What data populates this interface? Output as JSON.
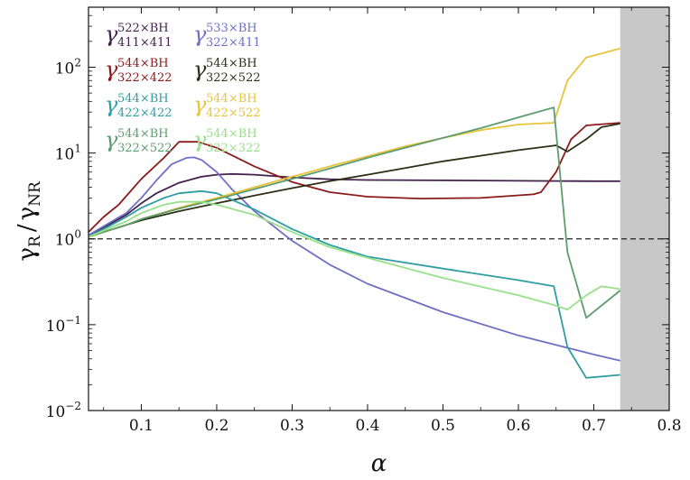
{
  "chart_data": {
    "type": "line",
    "xlabel": "α",
    "ylabel": "γR / γNR",
    "ylabel_parts": {
      "g1": "γ",
      "s1": "R",
      "slash": "/",
      "g2": "γ",
      "s2": "NR"
    },
    "xlim": [
      0.03,
      0.8
    ],
    "ylim": [
      0.01,
      500
    ],
    "yscale": "log",
    "x_ticks": [
      0.1,
      0.2,
      0.3,
      0.4,
      0.5,
      0.6,
      0.7,
      0.8
    ],
    "x_tick_labels": [
      "0.1",
      "0.2",
      "0.3",
      "0.4",
      "0.5",
      "0.6",
      "0.7",
      "0.8"
    ],
    "y_ticks": [
      0.01,
      0.1,
      1,
      10,
      100
    ],
    "y_tick_labels": [
      {
        "base": "10",
        "exp": "−2"
      },
      {
        "base": "10",
        "exp": "−1"
      },
      {
        "base": "10",
        "exp": "0"
      },
      {
        "base": "10",
        "exp": "1"
      },
      {
        "base": "10",
        "exp": "2"
      }
    ],
    "reference_line": {
      "y": 1,
      "style": "dashed",
      "color": "#222222"
    },
    "shaded_region": {
      "x": [
        0.735,
        0.8
      ],
      "color": "#c8c8c8"
    },
    "legend_placement": "top-left",
    "series": [
      {
        "name": "522×BH / 411×411",
        "label": {
          "sup": "522×BH",
          "sub": "411×411"
        },
        "color": "#45214e",
        "x": [
          0.03,
          0.05,
          0.08,
          0.1,
          0.12,
          0.15,
          0.18,
          0.2,
          0.22,
          0.25,
          0.3,
          0.35,
          0.4,
          0.5,
          0.6,
          0.65,
          0.7,
          0.735
        ],
        "y": [
          1.1,
          1.35,
          1.9,
          2.6,
          3.4,
          4.5,
          5.3,
          5.6,
          5.7,
          5.6,
          5.2,
          4.95,
          4.85,
          4.8,
          4.75,
          4.72,
          4.7,
          4.7
        ]
      },
      {
        "name": "533×BH / 322×411",
        "label": {
          "sup": "533×BH",
          "sub": "322×411"
        },
        "color": "#6e6fc4",
        "x": [
          0.03,
          0.05,
          0.08,
          0.1,
          0.12,
          0.14,
          0.16,
          0.17,
          0.18,
          0.2,
          0.22,
          0.25,
          0.3,
          0.35,
          0.4,
          0.5,
          0.6,
          0.7,
          0.735
        ],
        "y": [
          1.1,
          1.4,
          2.0,
          3.0,
          4.8,
          7.4,
          8.8,
          8.9,
          8.3,
          6.0,
          3.8,
          2.1,
          0.95,
          0.5,
          0.3,
          0.14,
          0.075,
          0.045,
          0.038
        ]
      },
      {
        "name": "544×BH / 322×422",
        "label": {
          "sup": "544×BH",
          "sub": "322×422"
        },
        "color": "#8b1a1a",
        "x": [
          0.03,
          0.05,
          0.07,
          0.1,
          0.13,
          0.15,
          0.175,
          0.2,
          0.25,
          0.3,
          0.35,
          0.4,
          0.47,
          0.55,
          0.62,
          0.63,
          0.65,
          0.67,
          0.69,
          0.735
        ],
        "y": [
          1.2,
          1.8,
          2.5,
          5.0,
          8.8,
          13.5,
          13.5,
          11.5,
          7.0,
          4.6,
          3.5,
          3.1,
          2.95,
          3.0,
          3.3,
          3.5,
          6.0,
          14.5,
          21.0,
          22.5
        ]
      },
      {
        "name": "544×BH / 322×522",
        "label": {
          "sup": "544×BH",
          "sub": "322×522"
        },
        "color": "#2e3016",
        "x": [
          0.03,
          0.05,
          0.08,
          0.1,
          0.15,
          0.2,
          0.25,
          0.3,
          0.35,
          0.4,
          0.45,
          0.5,
          0.55,
          0.6,
          0.65,
          0.665,
          0.69,
          0.71,
          0.735
        ],
        "y": [
          1.05,
          1.2,
          1.45,
          1.65,
          2.1,
          2.6,
          3.2,
          3.9,
          4.7,
          5.6,
          6.7,
          8.0,
          9.3,
          10.8,
          12.3,
          10.4,
          14.5,
          20.0,
          22.0
        ]
      },
      {
        "name": "544×BH / 422×422",
        "label": {
          "sup": "544×BH",
          "sub": "422×422"
        },
        "color": "#2e9ea3",
        "x": [
          0.03,
          0.05,
          0.08,
          0.1,
          0.13,
          0.15,
          0.18,
          0.2,
          0.25,
          0.3,
          0.35,
          0.4,
          0.5,
          0.6,
          0.647,
          0.665,
          0.69,
          0.735
        ],
        "y": [
          1.05,
          1.3,
          1.8,
          2.3,
          3.0,
          3.4,
          3.6,
          3.4,
          2.2,
          1.3,
          0.85,
          0.62,
          0.45,
          0.33,
          0.28,
          0.055,
          0.024,
          0.026
        ]
      },
      {
        "name": "544×BH / 422×522",
        "label": {
          "sup": "544×BH",
          "sub": "422×522"
        },
        "color": "#e8c43a",
        "x": [
          0.03,
          0.05,
          0.08,
          0.1,
          0.15,
          0.2,
          0.25,
          0.3,
          0.35,
          0.4,
          0.45,
          0.5,
          0.55,
          0.6,
          0.647,
          0.665,
          0.69,
          0.735
        ],
        "y": [
          1.05,
          1.2,
          1.45,
          1.7,
          2.3,
          3.0,
          4.0,
          5.3,
          7.0,
          9.2,
          12.0,
          15.0,
          18.5,
          21.5,
          22.5,
          70.0,
          130.0,
          165.0
        ]
      },
      {
        "name": "544×BH / 322×522",
        "label": {
          "sup": "544×BH",
          "sub": "322×522"
        },
        "color": "#5e9c6f",
        "x": [
          0.03,
          0.05,
          0.08,
          0.1,
          0.15,
          0.2,
          0.25,
          0.3,
          0.35,
          0.4,
          0.45,
          0.5,
          0.55,
          0.6,
          0.647,
          0.665,
          0.69,
          0.735
        ],
        "y": [
          1.05,
          1.2,
          1.45,
          1.7,
          2.25,
          2.9,
          3.8,
          5.0,
          6.6,
          8.8,
          11.5,
          15.0,
          19.5,
          26.0,
          34.0,
          0.7,
          0.12,
          0.25
        ]
      },
      {
        "name": "544×BH / 322×322",
        "label": {
          "sup": "544×BH",
          "sub": "322×322"
        },
        "color": "#98e089",
        "x": [
          0.03,
          0.05,
          0.08,
          0.1,
          0.13,
          0.15,
          0.18,
          0.2,
          0.25,
          0.3,
          0.35,
          0.4,
          0.5,
          0.6,
          0.647,
          0.665,
          0.69,
          0.71,
          0.735
        ],
        "y": [
          1.05,
          1.25,
          1.6,
          2.0,
          2.5,
          2.7,
          2.7,
          2.5,
          1.9,
          1.2,
          0.8,
          0.6,
          0.35,
          0.22,
          0.17,
          0.15,
          0.22,
          0.28,
          0.26
        ]
      }
    ]
  }
}
